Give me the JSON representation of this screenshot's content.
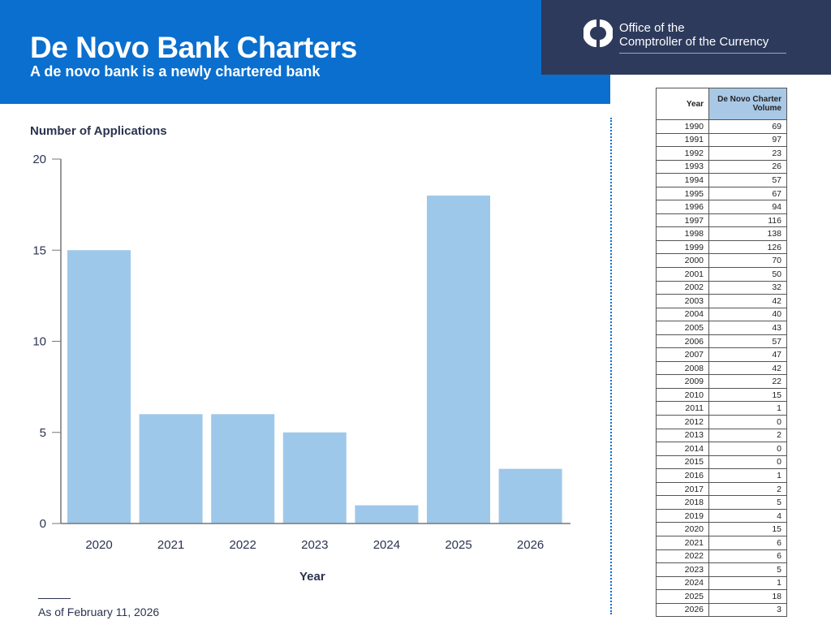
{
  "header": {
    "title": "De Novo Bank Charters",
    "subtitle": "A de novo bank is a newly chartered bank"
  },
  "logo": {
    "line1": "Office of the",
    "line2": "Comptroller of the Currency"
  },
  "footer": {
    "note": "As of February 11, 2026"
  },
  "colors": {
    "header_blue": "#0a6fcf",
    "logo_navy": "#2d3a5c",
    "bar": "#9ec8ea",
    "table_header": "#a9c8e6"
  },
  "chart_data": {
    "type": "bar",
    "ylabel": "Number of Applications",
    "xlabel": "Year",
    "categories": [
      "2020",
      "2021",
      "2022",
      "2023",
      "2024",
      "2025",
      "2026"
    ],
    "values": [
      15,
      6,
      6,
      5,
      1,
      18,
      3
    ],
    "ylim": [
      0,
      20
    ],
    "yticks": [
      "0",
      "5",
      "10",
      "15",
      "20"
    ],
    "grid": false
  },
  "table": {
    "headers": [
      "Year",
      "De Novo Charter Volume"
    ],
    "rows": [
      [
        "1990",
        "69"
      ],
      [
        "1991",
        "97"
      ],
      [
        "1992",
        "23"
      ],
      [
        "1993",
        "26"
      ],
      [
        "1994",
        "57"
      ],
      [
        "1995",
        "67"
      ],
      [
        "1996",
        "94"
      ],
      [
        "1997",
        "116"
      ],
      [
        "1998",
        "138"
      ],
      [
        "1999",
        "126"
      ],
      [
        "2000",
        "70"
      ],
      [
        "2001",
        "50"
      ],
      [
        "2002",
        "32"
      ],
      [
        "2003",
        "42"
      ],
      [
        "2004",
        "40"
      ],
      [
        "2005",
        "43"
      ],
      [
        "2006",
        "57"
      ],
      [
        "2007",
        "47"
      ],
      [
        "2008",
        "42"
      ],
      [
        "2009",
        "22"
      ],
      [
        "2010",
        "15"
      ],
      [
        "2011",
        "1"
      ],
      [
        "2012",
        "0"
      ],
      [
        "2013",
        "2"
      ],
      [
        "2014",
        "0"
      ],
      [
        "2015",
        "0"
      ],
      [
        "2016",
        "1"
      ],
      [
        "2017",
        "2"
      ],
      [
        "2018",
        "5"
      ],
      [
        "2019",
        "4"
      ],
      [
        "2020",
        "15"
      ],
      [
        "2021",
        "6"
      ],
      [
        "2022",
        "6"
      ],
      [
        "2023",
        "5"
      ],
      [
        "2024",
        "1"
      ],
      [
        "2025",
        "18"
      ],
      [
        "2026",
        "3"
      ]
    ]
  }
}
